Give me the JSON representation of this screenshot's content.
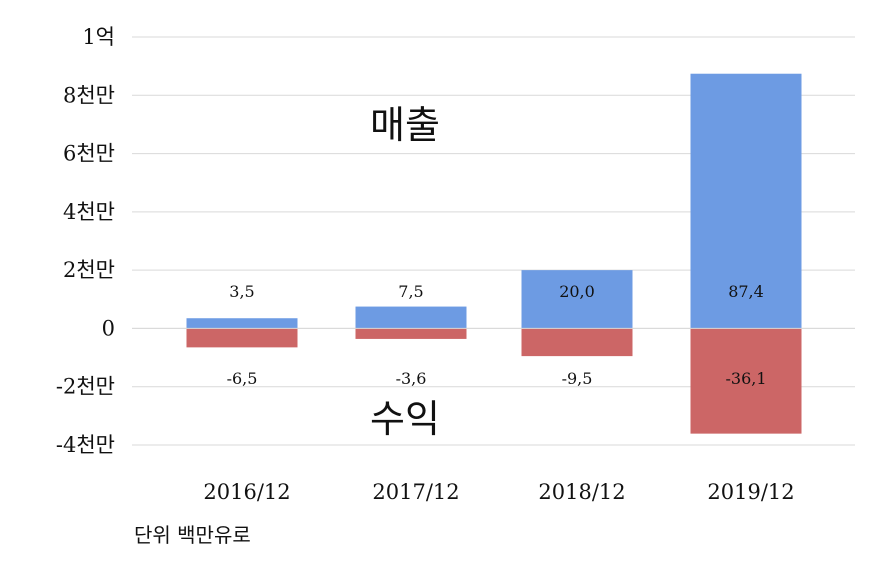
{
  "chart_data": {
    "type": "bar",
    "categories": [
      "2016/12",
      "2017/12",
      "2018/12",
      "2019/12"
    ],
    "series": [
      {
        "name": "매출",
        "values": [
          3.5,
          7.5,
          20.0,
          87.4
        ],
        "labels": [
          "3,5",
          "7,5",
          "20,0",
          "87,4"
        ],
        "color": "#6d9be3"
      },
      {
        "name": "수익",
        "values": [
          -6.5,
          -3.6,
          -9.5,
          -36.1
        ],
        "labels": [
          "-6,5",
          "-3,6",
          "-9,5",
          "-36,1"
        ],
        "color": "#cc6666"
      }
    ],
    "ylim": [
      -40,
      100
    ],
    "yticks": [
      {
        "value": 100,
        "label": "1억"
      },
      {
        "value": 80,
        "label": "8천만"
      },
      {
        "value": 60,
        "label": "6천만"
      },
      {
        "value": 40,
        "label": "4천만"
      },
      {
        "value": 20,
        "label": "2천만"
      },
      {
        "value": 0,
        "label": "0"
      },
      {
        "value": -20,
        "label": "-2천만"
      },
      {
        "value": -40,
        "label": "-4천만"
      }
    ],
    "grid": true,
    "gridline_color": "#d9d9d9",
    "note": "단위 백만유로"
  }
}
